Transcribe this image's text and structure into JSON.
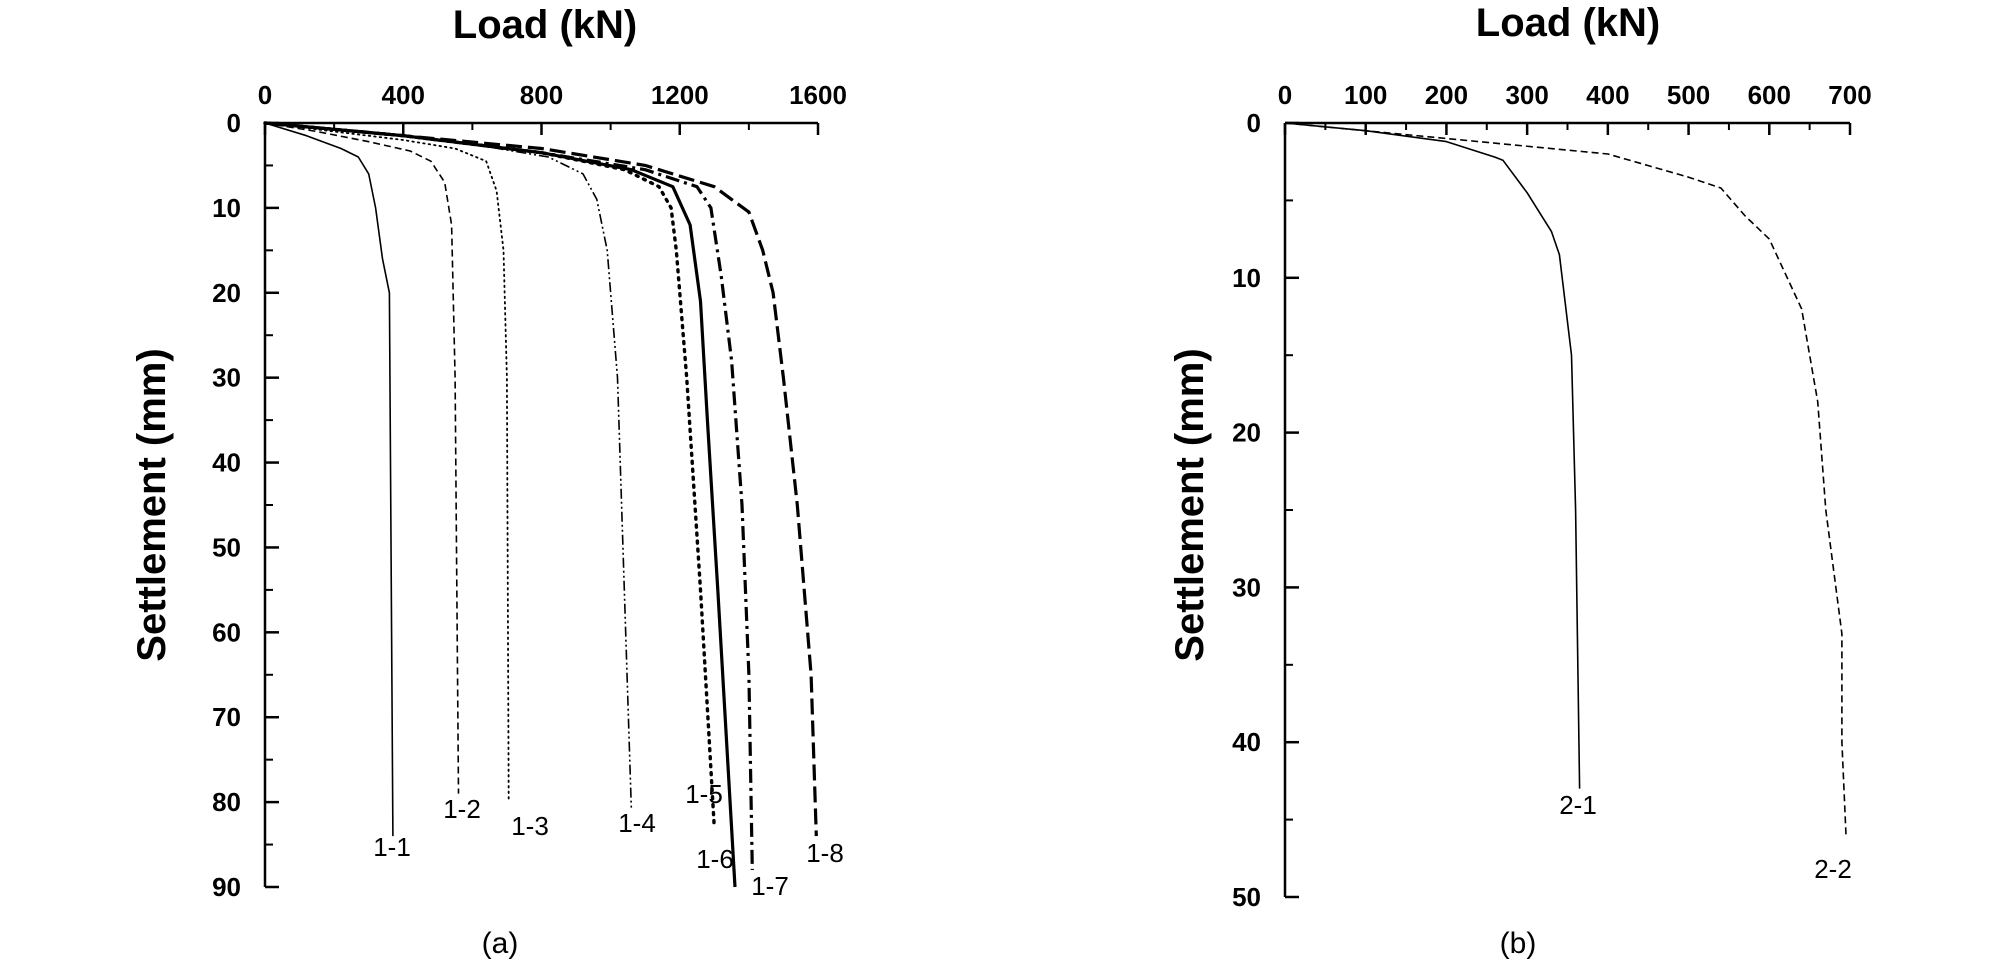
{
  "chart_data": [
    {
      "type": "line",
      "panel_label": "(a)",
      "xlabel": "Load (kN)",
      "ylabel": "Settlement (mm)",
      "xlim": [
        0,
        1600
      ],
      "ylim": [
        0,
        90
      ],
      "y_inverted": true,
      "x_axis_position": "top",
      "x_ticks": [
        0,
        400,
        800,
        1200,
        1600
      ],
      "y_ticks": [
        0,
        10,
        20,
        30,
        40,
        50,
        60,
        70,
        80,
        90
      ],
      "grid": false,
      "series": [
        {
          "name": "1-1",
          "style": "solid",
          "width": 1.6,
          "x": [
            0,
            120,
            220,
            270,
            300,
            320,
            340,
            360,
            370
          ],
          "y": [
            0,
            1.5,
            3,
            4,
            6,
            10,
            16,
            20,
            84
          ]
        },
        {
          "name": "1-2",
          "style": "dashed",
          "width": 1.6,
          "x": [
            0,
            150,
            300,
            420,
            480,
            520,
            540,
            550,
            560
          ],
          "y": [
            0,
            1,
            2.2,
            3.3,
            4.5,
            7,
            12,
            30,
            79
          ]
        },
        {
          "name": "1-3",
          "style": "dotted",
          "width": 1.8,
          "x": [
            0,
            200,
            400,
            550,
            640,
            670,
            690,
            700,
            705
          ],
          "y": [
            0,
            1,
            2,
            3,
            4.5,
            8,
            15,
            30,
            80
          ]
        },
        {
          "name": "1-4",
          "style": "dashdotdot",
          "width": 1.6,
          "x": [
            0,
            300,
            600,
            820,
            920,
            960,
            990,
            1020,
            1060
          ],
          "y": [
            0,
            1,
            2.5,
            4,
            6,
            9,
            15,
            30,
            81
          ]
        },
        {
          "name": "1-5",
          "style": "dotted-bold",
          "width": 3.4,
          "x": [
            0,
            400,
            800,
            1040,
            1140,
            1175,
            1190,
            1220,
            1260,
            1300
          ],
          "y": [
            0,
            1.5,
            3.5,
            5.5,
            7.5,
            10,
            15,
            30,
            55,
            83
          ]
        },
        {
          "name": "1-6",
          "style": "solid-bold",
          "width": 3.2,
          "x": [
            0,
            400,
            800,
            1060,
            1180,
            1230,
            1260,
            1280,
            1310,
            1360
          ],
          "y": [
            0,
            1.5,
            3.5,
            5.5,
            7.5,
            12,
            21,
            35,
            55,
            90
          ]
        },
        {
          "name": "1-7",
          "style": "dashdot-bold",
          "width": 3.2,
          "x": [
            0,
            400,
            800,
            1100,
            1250,
            1290,
            1320,
            1350,
            1380,
            1400,
            1410
          ],
          "y": [
            0,
            1.5,
            3.5,
            5.5,
            7.5,
            10,
            18,
            28,
            45,
            65,
            88
          ]
        },
        {
          "name": "1-8",
          "style": "dashed-bold",
          "width": 3.2,
          "x": [
            0,
            400,
            800,
            1100,
            1300,
            1400,
            1440,
            1470,
            1500,
            1540,
            1580,
            1595
          ],
          "y": [
            0,
            1.5,
            3,
            5,
            7.5,
            10.5,
            15,
            20,
            30,
            45,
            65,
            84
          ]
        }
      ]
    },
    {
      "type": "line",
      "panel_label": "(b)",
      "xlabel": "Load (kN)",
      "ylabel": "Settlement (mm)",
      "xlim": [
        0,
        700
      ],
      "ylim": [
        0,
        50
      ],
      "y_inverted": true,
      "x_axis_position": "top",
      "x_ticks": [
        0,
        100,
        200,
        300,
        400,
        500,
        600,
        700
      ],
      "y_ticks": [
        0,
        10,
        20,
        30,
        40,
        50
      ],
      "grid": false,
      "series": [
        {
          "name": "2-1",
          "style": "solid",
          "width": 1.6,
          "x": [
            0,
            100,
            200,
            260,
            270,
            300,
            330,
            340,
            355,
            360,
            365
          ],
          "y": [
            0,
            0.5,
            1.2,
            2.2,
            2.4,
            4.5,
            7,
            8.5,
            15,
            25,
            43
          ]
        },
        {
          "name": "2-2",
          "style": "dashed",
          "width": 1.6,
          "x": [
            0,
            200,
            400,
            500,
            540,
            570,
            600,
            640,
            660,
            670,
            690,
            690,
            695
          ],
          "y": [
            0,
            1,
            2,
            3.5,
            4.2,
            6,
            7.5,
            12,
            18,
            25,
            33,
            40,
            46
          ]
        }
      ]
    }
  ]
}
